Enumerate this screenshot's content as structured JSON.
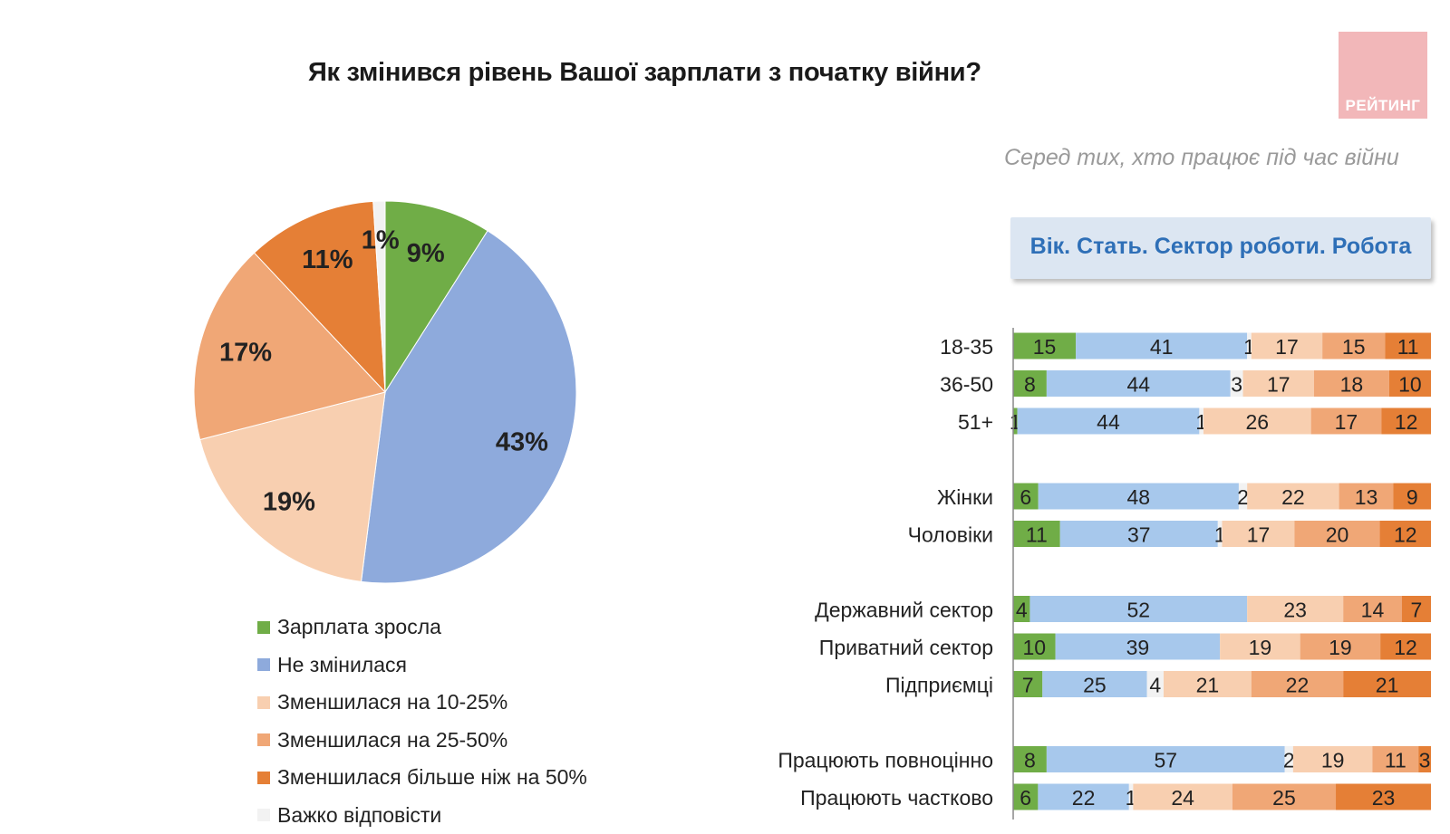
{
  "title": "Як змінився рівень Вашої зарплати з початку війни?",
  "logo_text": "РЕЙТИНГ",
  "subtitle": "Серед тих, хто працює під час війни",
  "filter_label": "Вік. Стать. Сектор роботи. Робота",
  "colors": {
    "increased": "#70ad47",
    "unchanged": "#9db9e6",
    "unchanged_bar": "#a7c8ec",
    "dec_10_25": "#f8cfb0",
    "dec_25_50": "#f0a776",
    "dec_50": "#e57f36",
    "hard": "#f2f2f2"
  },
  "legend": [
    {
      "label": "Зарплата зросла",
      "color": "#70ad47"
    },
    {
      "label": "Не змінилася",
      "color": "#8eaadc"
    },
    {
      "label": "Зменшилася на 10-25%",
      "color": "#f8cfb0"
    },
    {
      "label": "Зменшилася на 25-50%",
      "color": "#f0a776"
    },
    {
      "label": "Зменшилася більше ніж на 50%",
      "color": "#e57f36"
    },
    {
      "label": "Важко відповісти",
      "color": "#f2f2f2"
    }
  ],
  "chart_data": [
    {
      "type": "pie",
      "title": "Як змінився рівень Вашої зарплати з початку війни?",
      "slices": [
        {
          "name": "Зарплата зросла",
          "value": 9,
          "label": "9%",
          "color": "#70ad47"
        },
        {
          "name": "Не змінилася",
          "value": 43,
          "label": "43%",
          "color": "#8eaadc"
        },
        {
          "name": "Зменшилася на 10-25%",
          "value": 19,
          "label": "19%",
          "color": "#f8cfb0"
        },
        {
          "name": "Зменшилася на 25-50%",
          "value": 17,
          "label": "17%",
          "color": "#f0a776"
        },
        {
          "name": "Зменшилася більше ніж на 50%",
          "value": 11,
          "label": "11%",
          "color": "#e57f36"
        },
        {
          "name": "Важко відповісти",
          "value": 1,
          "label": "1%",
          "color": "#f2f2f2"
        }
      ]
    },
    {
      "type": "bar",
      "orientation": "horizontal",
      "stacked": true,
      "subtitle": "Серед тих, хто працює під час війни",
      "series_names": [
        "Зарплата зросла",
        "Не змінилася",
        "Важко відповісти",
        "Зменшилася на 10-25%",
        "Зменшилася на 25-50%",
        "Зменшилася більше ніж на 50%"
      ],
      "series_colors": [
        "#70ad47",
        "#a7c8ec",
        "#f2f2f2",
        "#f8cfb0",
        "#f0a776",
        "#e57f36"
      ],
      "groups": [
        [
          {
            "label": "18-35",
            "values": [
              15,
              41,
              1,
              17,
              15,
              11
            ]
          },
          {
            "label": "36-50",
            "values": [
              8,
              44,
              3,
              17,
              18,
              10
            ]
          },
          {
            "label": "51+",
            "values": [
              1,
              44,
              1,
              26,
              17,
              12
            ]
          }
        ],
        [
          {
            "label": "Жінки",
            "values": [
              6,
              48,
              2,
              22,
              13,
              9
            ]
          },
          {
            "label": "Чоловіки",
            "values": [
              11,
              37,
              1,
              17,
              20,
              12
            ]
          }
        ],
        [
          {
            "label": "Державний сектор",
            "values": [
              4,
              52,
              0,
              23,
              14,
              7
            ]
          },
          {
            "label": "Приватний сектор",
            "values": [
              10,
              39,
              0,
              19,
              19,
              12
            ]
          },
          {
            "label": "Підприємці",
            "values": [
              7,
              25,
              4,
              21,
              22,
              21
            ]
          }
        ],
        [
          {
            "label": "Працюють повноцінно",
            "values": [
              8,
              57,
              2,
              19,
              11,
              3
            ]
          },
          {
            "label": "Працюють частково",
            "values": [
              6,
              22,
              1,
              24,
              25,
              23
            ]
          }
        ]
      ]
    }
  ]
}
